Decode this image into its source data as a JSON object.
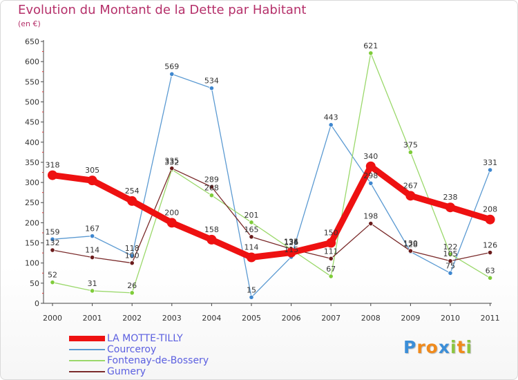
{
  "header": {
    "title": "Evolution du Montant de la Dette par Habitant",
    "subtitle": "(en €)"
  },
  "logo": {
    "letters": [
      "P",
      "r",
      "o",
      "x",
      "i",
      "t",
      "i"
    ],
    "colors": [
      "#3b8ed8",
      "#f08a1c",
      "#f08a1c",
      "#3b8ed8",
      "#8cc63f",
      "#f08a1c",
      "#8cc63f"
    ]
  },
  "chart_data": {
    "type": "line",
    "title": "Evolution du Montant de la Dette par Habitant",
    "ylabel": "(en €)",
    "xlabel": "",
    "x": [
      "2000",
      "2001",
      "2002",
      "2003",
      "2004",
      "2005",
      "2006",
      "2007",
      "2008",
      "2009",
      "2010",
      "2011"
    ],
    "ylim": [
      0,
      650
    ],
    "yticks": [
      0,
      50,
      100,
      150,
      200,
      250,
      300,
      350,
      400,
      450,
      500,
      550,
      600,
      650
    ],
    "grid": false,
    "legend_position": "bottom-left",
    "series": [
      {
        "name": "LA MOTTE-TILLY",
        "color": "#ee1111",
        "marker": "#ee1111",
        "values": [
          318,
          305,
          254,
          200,
          158,
          114,
          126,
          150,
          340,
          267,
          238,
          208
        ],
        "labels": [
          "318",
          "305",
          "254",
          "200",
          "158",
          "114",
          "126",
          "150",
          "340",
          "267",
          "238",
          "208"
        ]
      },
      {
        "name": "Courceroy",
        "color": "#5b9ad2",
        "marker": "#3f87cf",
        "values": [
          159,
          167,
          118,
          569,
          534,
          15,
          115,
          443,
          298,
          128,
          75,
          331
        ],
        "labels": [
          "159",
          "167",
          "118",
          "569",
          "534",
          "15",
          "115",
          "443",
          "298",
          "128",
          "75",
          "331"
        ]
      },
      {
        "name": "Fontenay-de-Bossery",
        "color": "#9ad86a",
        "marker": "#7fcc3a",
        "values": [
          52,
          31,
          26,
          332,
          268,
          201,
          134,
          67,
          621,
          375,
          122,
          63
        ],
        "labels": [
          "52",
          "31",
          "26",
          "332",
          "268",
          "201",
          "134",
          "67",
          "621",
          "375",
          "122",
          "63"
        ]
      },
      {
        "name": "Gumery",
        "color": "#7a2a2a",
        "marker": "#6b1c1c",
        "values": [
          132,
          114,
          100,
          335,
          289,
          165,
          135,
          111,
          198,
          130,
          105,
          126
        ],
        "labels": [
          "132",
          "114",
          "100",
          "335",
          "289",
          "165",
          "135",
          "111",
          "198",
          "130",
          "105",
          "126"
        ]
      }
    ]
  }
}
